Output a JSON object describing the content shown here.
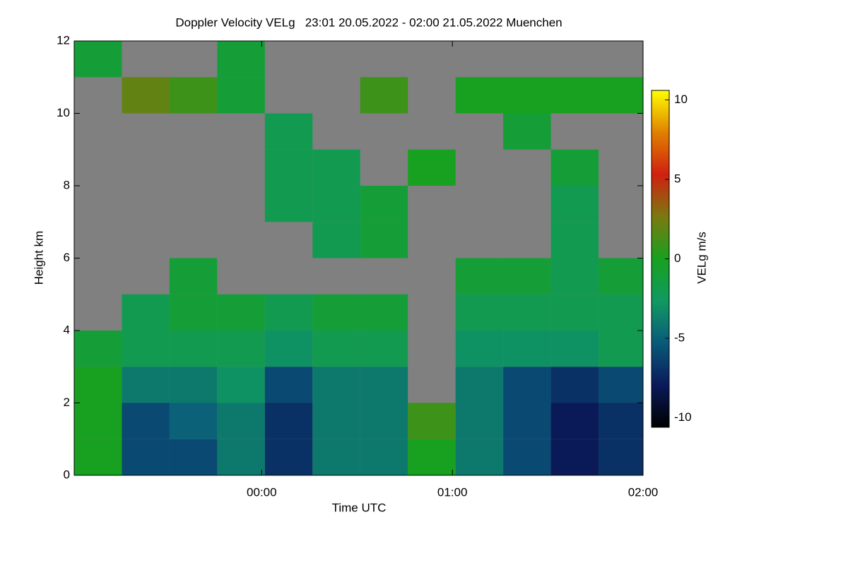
{
  "chart_data": {
    "type": "heatmap",
    "title": "Doppler Velocity VELg   23:01 20.05.2022 - 02:00 21.05.2022 Muenchen",
    "xlabel": "Time UTC",
    "ylabel": "Height km",
    "colorbar_label": "VELg m/s",
    "background": "#808080",
    "x": [
      "23:01",
      "23:16",
      "23:31",
      "23:46",
      "00:01",
      "00:16",
      "00:31",
      "00:46",
      "01:01",
      "01:16",
      "01:31",
      "01:46"
    ],
    "y": [
      0,
      1,
      2,
      3,
      4,
      5,
      6,
      7,
      8,
      9,
      10,
      11
    ],
    "xlim": [
      "23:01",
      "02:00"
    ],
    "xticks": [
      "00:00",
      "01:00",
      "02:00"
    ],
    "ylim": [
      0,
      12
    ],
    "yticks": [
      0,
      2,
      4,
      6,
      8,
      10,
      12
    ],
    "zlim": [
      -10.6,
      10.6
    ],
    "zticks": [
      -10,
      -5,
      0,
      5,
      10
    ],
    "colormap": [
      "#000000",
      "#0a1a5a",
      "#0a5a7a",
      "#109a60",
      "#18a020",
      "#7a7a10",
      "#d02010",
      "#e08000",
      "#ffff00"
    ],
    "z": [
      [
        0,
        -6,
        -6,
        -4,
        -7,
        -4,
        -4,
        0,
        -4,
        -6,
        -8,
        -7
      ],
      [
        0,
        -6,
        -5,
        -4,
        -7,
        -4,
        -4,
        1,
        -4,
        -6,
        -8,
        -7
      ],
      [
        0,
        -4,
        -4,
        -3,
        -6,
        -4,
        -4,
        null,
        -4,
        -6,
        -7,
        -6
      ],
      [
        -1,
        -2,
        -2,
        -2,
        -3,
        -2,
        -2,
        null,
        -3,
        -3,
        -3,
        -2
      ],
      [
        null,
        -2,
        -1,
        -1,
        -2,
        -1,
        -1,
        null,
        -2,
        -2,
        -2,
        -2
      ],
      [
        null,
        null,
        -1,
        null,
        null,
        null,
        null,
        null,
        -1,
        -1,
        -2,
        -1
      ],
      [
        null,
        null,
        null,
        null,
        null,
        -2,
        -1,
        null,
        null,
        null,
        -2,
        null
      ],
      [
        null,
        null,
        null,
        null,
        -2,
        -2,
        -1,
        null,
        null,
        null,
        -2,
        null
      ],
      [
        null,
        null,
        null,
        null,
        -2,
        -2,
        null,
        0,
        null,
        null,
        -1,
        null
      ],
      [
        null,
        null,
        null,
        null,
        -2,
        null,
        null,
        null,
        null,
        -1,
        null,
        null
      ],
      [
        null,
        2,
        1,
        -1,
        null,
        null,
        1,
        null,
        0,
        0,
        0,
        0
      ],
      [
        -1,
        null,
        null,
        -1,
        null,
        null,
        null,
        null,
        null,
        null,
        null,
        null
      ]
    ]
  }
}
